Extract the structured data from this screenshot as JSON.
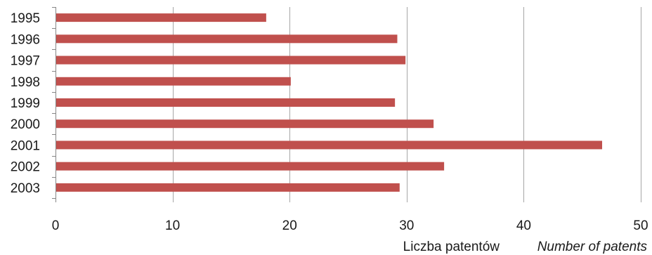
{
  "chart_data": {
    "type": "bar",
    "orientation": "horizontal",
    "categories": [
      "1995",
      "1996",
      "1997",
      "1998",
      "1999",
      "2000",
      "2001",
      "2002",
      "2003"
    ],
    "values": [
      18,
      29.2,
      29.9,
      20.1,
      29,
      32.3,
      46.7,
      33.2,
      29.4
    ],
    "xlim": [
      0,
      50
    ],
    "xticks": [
      0,
      10,
      20,
      30,
      40,
      50
    ],
    "xlabel": "Liczba patentów",
    "xlabel_en": "Number of patents",
    "grid": "vertical",
    "legend": "none",
    "bar_color": "#c0504d",
    "grid_color": "#a6a6a6"
  }
}
